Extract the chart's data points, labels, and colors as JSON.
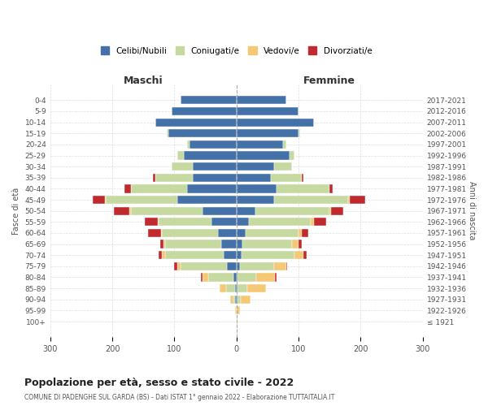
{
  "age_groups": [
    "100+",
    "95-99",
    "90-94",
    "85-89",
    "80-84",
    "75-79",
    "70-74",
    "65-69",
    "60-64",
    "55-59",
    "50-54",
    "45-49",
    "40-44",
    "35-39",
    "30-34",
    "25-29",
    "20-24",
    "15-19",
    "10-14",
    "5-9",
    "0-4"
  ],
  "birth_years": [
    "≤ 1921",
    "1922-1926",
    "1927-1931",
    "1932-1936",
    "1937-1941",
    "1942-1946",
    "1947-1951",
    "1952-1956",
    "1957-1961",
    "1962-1966",
    "1967-1971",
    "1972-1976",
    "1977-1981",
    "1982-1986",
    "1987-1991",
    "1992-1996",
    "1997-2001",
    "2002-2006",
    "2007-2011",
    "2012-2016",
    "2017-2021"
  ],
  "male": {
    "celibi": [
      0,
      0,
      2,
      2,
      5,
      15,
      20,
      25,
      30,
      40,
      55,
      95,
      80,
      70,
      70,
      85,
      75,
      110,
      130,
      105,
      90
    ],
    "coniugati": [
      0,
      0,
      3,
      15,
      40,
      75,
      95,
      90,
      90,
      85,
      115,
      115,
      90,
      60,
      35,
      10,
      5,
      2,
      0,
      0,
      0
    ],
    "vedovi": [
      0,
      2,
      5,
      10,
      10,
      5,
      5,
      3,
      2,
      2,
      2,
      2,
      0,
      0,
      0,
      0,
      0,
      0,
      0,
      0,
      0
    ],
    "divorziati": [
      0,
      0,
      0,
      0,
      2,
      5,
      5,
      5,
      20,
      20,
      25,
      20,
      10,
      5,
      0,
      0,
      0,
      0,
      0,
      0,
      0
    ]
  },
  "female": {
    "nubili": [
      0,
      0,
      2,
      2,
      2,
      5,
      8,
      10,
      15,
      20,
      30,
      60,
      65,
      55,
      60,
      85,
      75,
      100,
      125,
      100,
      80
    ],
    "coniugate": [
      0,
      0,
      5,
      15,
      30,
      55,
      85,
      80,
      85,
      100,
      120,
      120,
      85,
      50,
      30,
      8,
      5,
      2,
      0,
      0,
      0
    ],
    "vedove": [
      2,
      5,
      15,
      30,
      30,
      20,
      15,
      10,
      5,
      5,
      2,
      2,
      0,
      0,
      0,
      0,
      0,
      0,
      0,
      0,
      0
    ],
    "divorziate": [
      0,
      0,
      0,
      0,
      2,
      2,
      5,
      5,
      10,
      20,
      20,
      25,
      5,
      3,
      0,
      0,
      0,
      0,
      0,
      0,
      0
    ]
  },
  "colors": {
    "celibi": "#4472a8",
    "coniugati": "#c5d9a0",
    "vedovi": "#f4c875",
    "divorziati": "#c0292e"
  },
  "title": "Popolazione per età, sesso e stato civile - 2022",
  "subtitle": "COMUNE DI PADENGHE SUL GARDA (BS) - Dati ISTAT 1° gennaio 2022 - Elaborazione TUTTAITALIA.IT",
  "xlabel_left": "Maschi",
  "xlabel_right": "Femmine",
  "ylabel_left": "Fasce di età",
  "ylabel_right": "Anni di nascita",
  "xlim": 300,
  "legend_labels": [
    "Celibi/Nubili",
    "Coniugati/e",
    "Vedovi/e",
    "Divorziati/e"
  ]
}
